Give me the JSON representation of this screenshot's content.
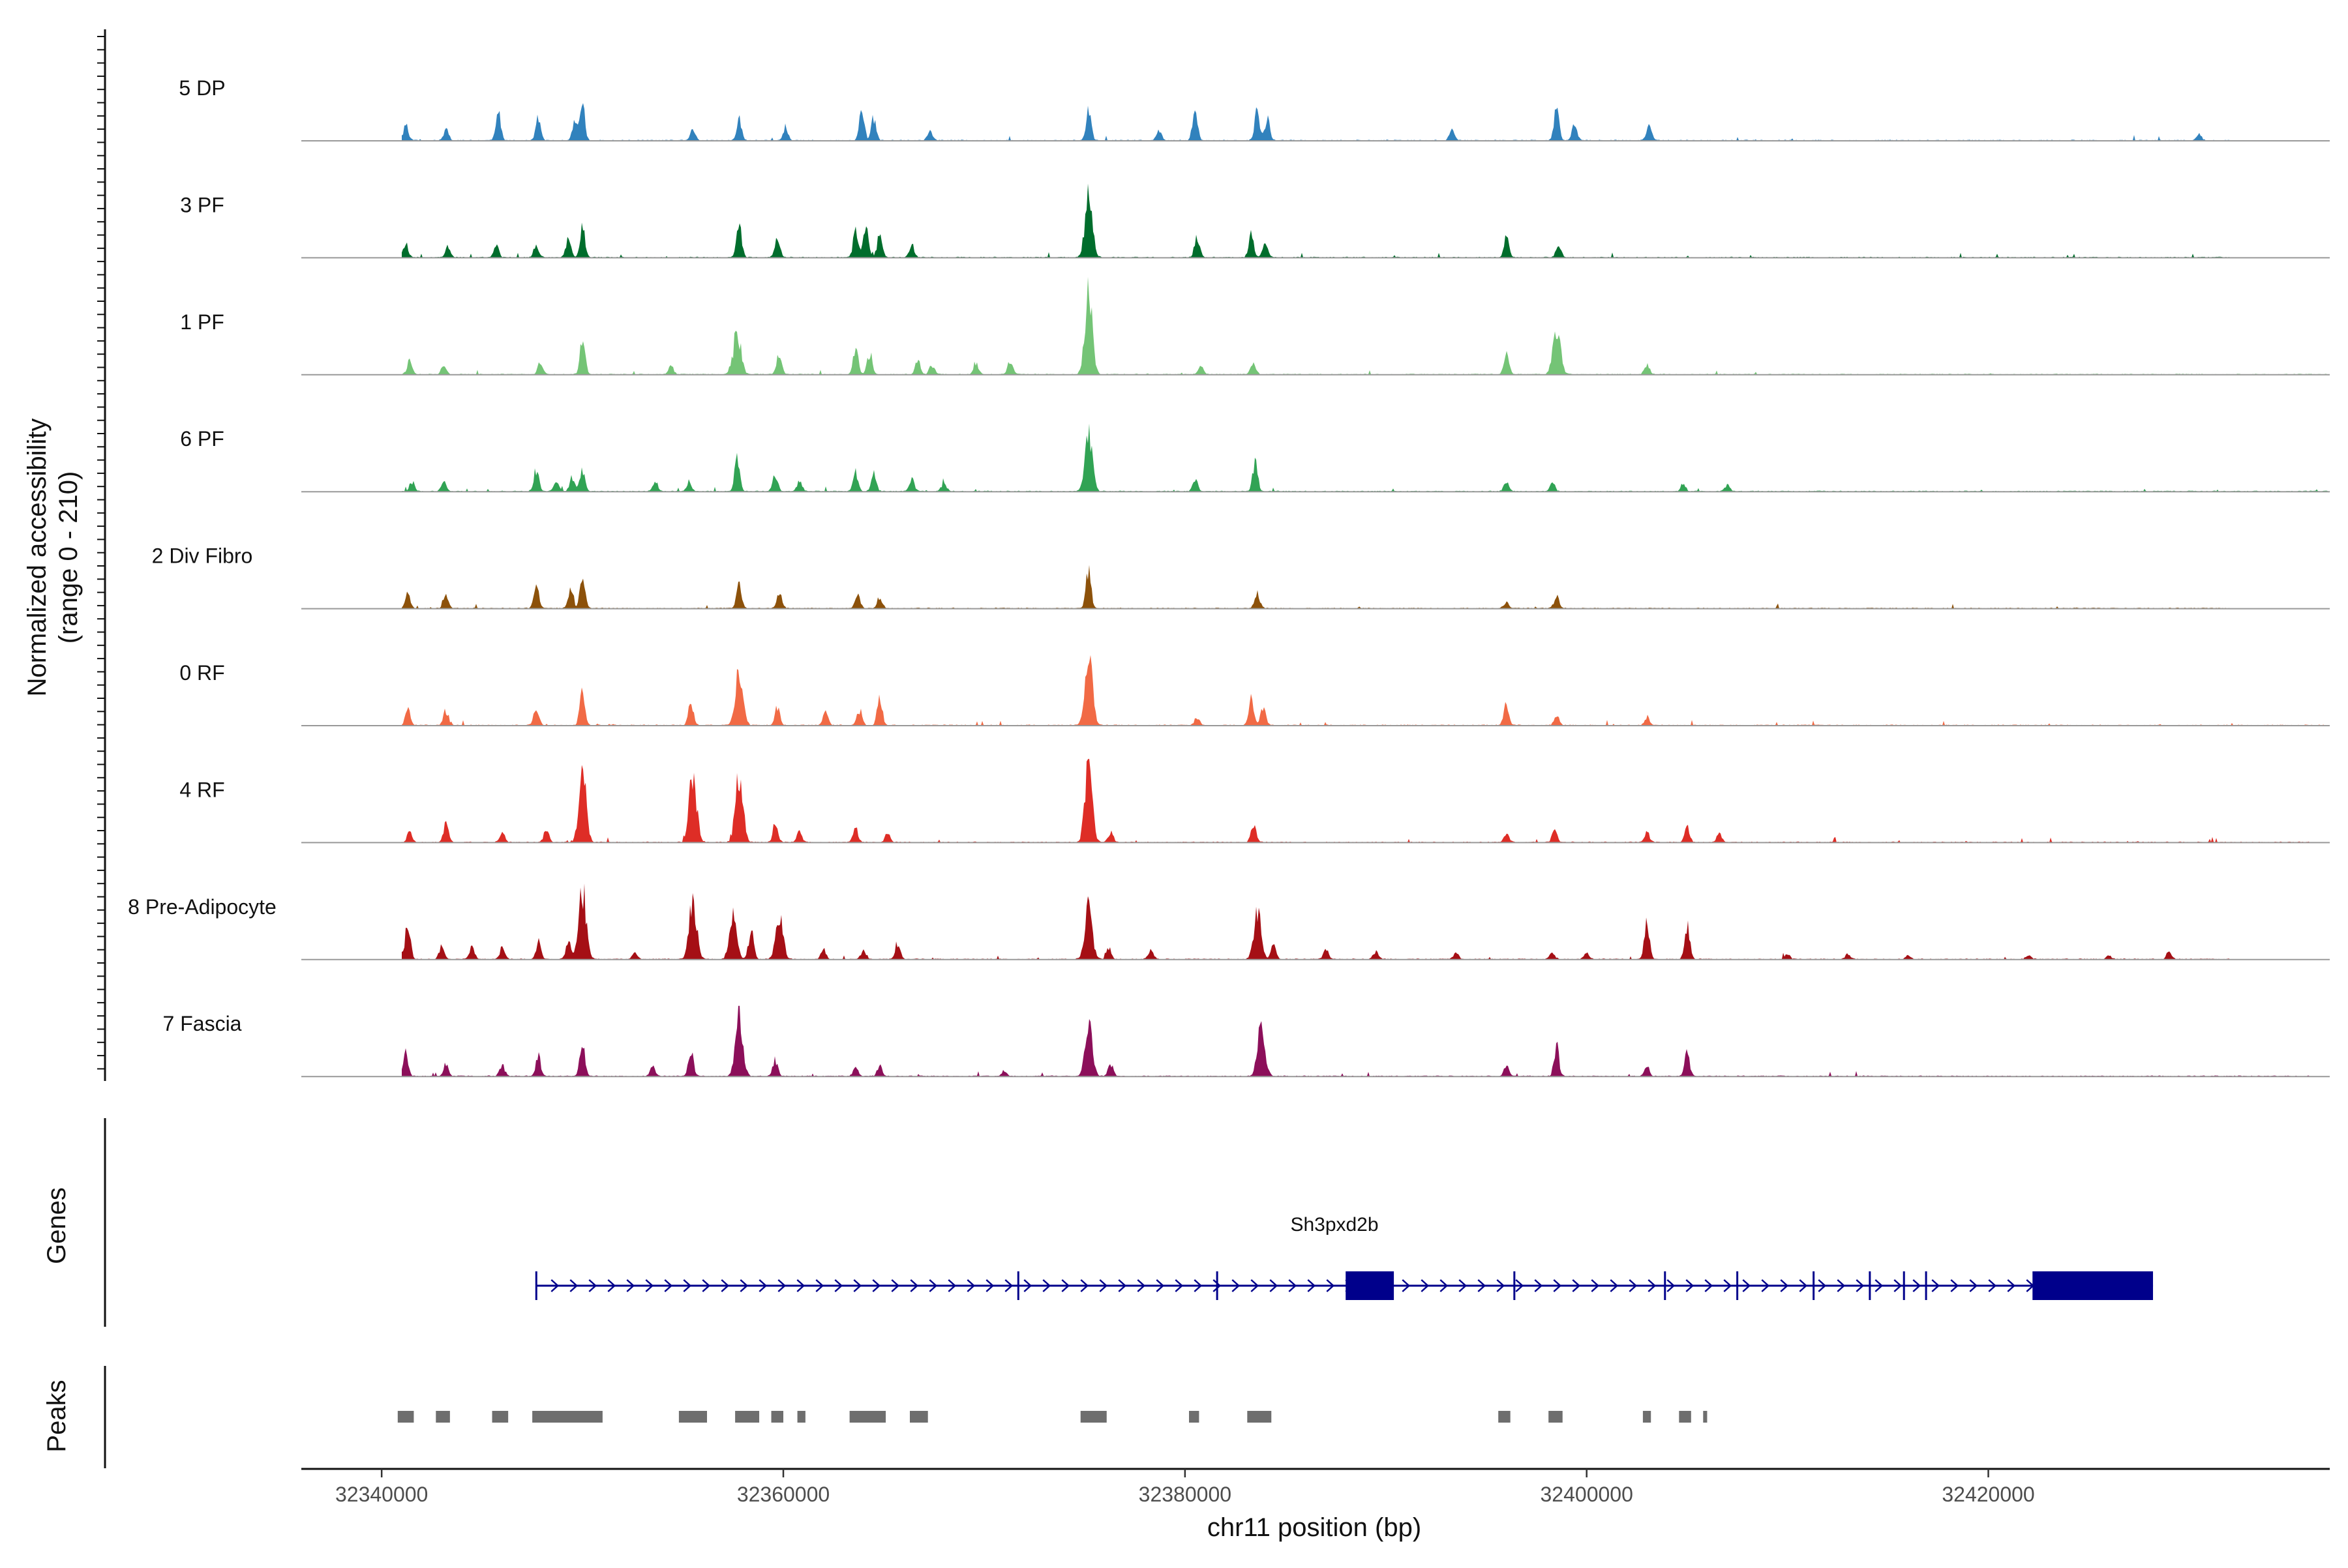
{
  "chart_data": {
    "type": "area",
    "chromosome": "chr11",
    "xlabel": "chr11 position (bp)",
    "xlim": [
      32336000,
      32437000
    ],
    "x_ticks": [
      32340000,
      32360000,
      32380000,
      32400000,
      32420000
    ],
    "x_tick_labels": [
      "32340000",
      "32360000",
      "32380000",
      "32400000",
      "32420000"
    ],
    "ylabel_line1": "Normalized accessibility",
    "ylabel_line2": "(range 0 - 210)",
    "ylim": [
      0,
      210
    ],
    "baseline_color": "#999999",
    "series": [
      {
        "name": "5 DP",
        "color": "#3182bd",
        "end": 32432000,
        "peaks": [
          [
            32341200,
            42
          ],
          [
            32343200,
            30
          ],
          [
            32345800,
            72
          ],
          [
            32347800,
            62
          ],
          [
            32349600,
            50
          ],
          [
            32350000,
            88
          ],
          [
            32355500,
            28
          ],
          [
            32357800,
            52
          ],
          [
            32360100,
            32
          ],
          [
            32363900,
            72
          ],
          [
            32364500,
            60
          ],
          [
            32367300,
            22
          ],
          [
            32375200,
            90
          ],
          [
            32378700,
            28
          ],
          [
            32380500,
            80
          ],
          [
            32383600,
            75
          ],
          [
            32384100,
            60
          ],
          [
            32393300,
            25
          ],
          [
            32398500,
            80
          ],
          [
            32399400,
            40
          ],
          [
            32403100,
            38
          ],
          [
            32430500,
            15
          ]
        ]
      },
      {
        "name": "3 PF",
        "color": "#006d2c",
        "end": 32432000,
        "peaks": [
          [
            32341200,
            35
          ],
          [
            32343300,
            28
          ],
          [
            32345700,
            30
          ],
          [
            32347700,
            35
          ],
          [
            32349300,
            48
          ],
          [
            32350000,
            85
          ],
          [
            32357800,
            82
          ],
          [
            32359700,
            52
          ],
          [
            32363600,
            70
          ],
          [
            32364100,
            82
          ],
          [
            32364800,
            60
          ],
          [
            32366400,
            30
          ],
          [
            32375200,
            155
          ],
          [
            32380600,
            55
          ],
          [
            32383300,
            55
          ],
          [
            32384000,
            42
          ],
          [
            32396000,
            50
          ],
          [
            32398600,
            32
          ]
        ]
      },
      {
        "name": "1 PF",
        "color": "#74c476",
        "end": 32437000,
        "peaks": [
          [
            32341400,
            38
          ],
          [
            32343100,
            25
          ],
          [
            32347900,
            35
          ],
          [
            32350000,
            100
          ],
          [
            32354400,
            25
          ],
          [
            32357700,
            110
          ],
          [
            32359800,
            55
          ],
          [
            32363600,
            65
          ],
          [
            32364300,
            55
          ],
          [
            32366700,
            38
          ],
          [
            32367400,
            25
          ],
          [
            32369600,
            25
          ],
          [
            32371300,
            35
          ],
          [
            32375200,
            210
          ],
          [
            32380800,
            22
          ],
          [
            32383400,
            35
          ],
          [
            32396000,
            60
          ],
          [
            32398500,
            122
          ],
          [
            32403000,
            28
          ]
        ]
      },
      {
        "name": "6 PF",
        "color": "#31a354",
        "end": 32437000,
        "peaks": [
          [
            32341500,
            25
          ],
          [
            32343100,
            30
          ],
          [
            32347700,
            55
          ],
          [
            32348700,
            30
          ],
          [
            32349500,
            38
          ],
          [
            32350000,
            55
          ],
          [
            32353600,
            25
          ],
          [
            32355300,
            25
          ],
          [
            32357700,
            88
          ],
          [
            32359600,
            45
          ],
          [
            32360800,
            25
          ],
          [
            32363600,
            48
          ],
          [
            32364500,
            45
          ],
          [
            32366400,
            30
          ],
          [
            32368000,
            22
          ],
          [
            32375200,
            140
          ],
          [
            32380500,
            30
          ],
          [
            32383500,
            75
          ],
          [
            32396000,
            25
          ],
          [
            32398300,
            22
          ],
          [
            32404800,
            20
          ],
          [
            32407000,
            18
          ]
        ]
      },
      {
        "name": "2 Div Fibro",
        "color": "#8c510a",
        "end": 32432000,
        "peaks": [
          [
            32341300,
            40
          ],
          [
            32343200,
            30
          ],
          [
            32347700,
            60
          ],
          [
            32349400,
            45
          ],
          [
            32350000,
            82
          ],
          [
            32357800,
            65
          ],
          [
            32359800,
            45
          ],
          [
            32363700,
            35
          ],
          [
            32364800,
            28
          ],
          [
            32375200,
            98
          ],
          [
            32383600,
            40
          ],
          [
            32396000,
            15
          ],
          [
            32398500,
            30
          ]
        ]
      },
      {
        "name": "0 RF",
        "color": "#f16a45",
        "end": 32437000,
        "peaks": [
          [
            32341300,
            42
          ],
          [
            32343200,
            38
          ],
          [
            32347700,
            45
          ],
          [
            32350000,
            100
          ],
          [
            32355400,
            55
          ],
          [
            32357800,
            152
          ],
          [
            32359700,
            50
          ],
          [
            32362100,
            35
          ],
          [
            32363800,
            40
          ],
          [
            32364800,
            70
          ],
          [
            32375200,
            180
          ],
          [
            32380600,
            22
          ],
          [
            32383300,
            70
          ],
          [
            32383900,
            48
          ],
          [
            32396000,
            62
          ],
          [
            32398500,
            25
          ],
          [
            32403000,
            22
          ]
        ]
      },
      {
        "name": "4 RF",
        "color": "#de2d26",
        "end": 32436000,
        "peaks": [
          [
            32341400,
            28
          ],
          [
            32343200,
            45
          ],
          [
            32346000,
            25
          ],
          [
            32348200,
            30
          ],
          [
            32350000,
            185
          ],
          [
            32355500,
            175
          ],
          [
            32357800,
            185
          ],
          [
            32359600,
            48
          ],
          [
            32360800,
            30
          ],
          [
            32363600,
            40
          ],
          [
            32365200,
            25
          ],
          [
            32375200,
            190
          ],
          [
            32376300,
            28
          ],
          [
            32383400,
            48
          ],
          [
            32396000,
            25
          ],
          [
            32398400,
            30
          ],
          [
            32403000,
            28
          ],
          [
            32405000,
            42
          ],
          [
            32406600,
            22
          ]
        ]
      },
      {
        "name": "8 Pre-Adipocyte",
        "color": "#a50f15",
        "end": 32432000,
        "peaks": [
          [
            32341300,
            100
          ],
          [
            32343000,
            35
          ],
          [
            32344500,
            30
          ],
          [
            32346000,
            30
          ],
          [
            32347800,
            45
          ],
          [
            32349300,
            50
          ],
          [
            32350000,
            180
          ],
          [
            32352600,
            20
          ],
          [
            32355500,
            150
          ],
          [
            32357500,
            110
          ],
          [
            32358400,
            80
          ],
          [
            32359800,
            112
          ],
          [
            32362000,
            25
          ],
          [
            32364000,
            25
          ],
          [
            32365700,
            40
          ],
          [
            32375200,
            130
          ],
          [
            32376200,
            30
          ],
          [
            32378300,
            25
          ],
          [
            32383600,
            120
          ],
          [
            32384400,
            40
          ],
          [
            32387000,
            25
          ],
          [
            32389500,
            20
          ],
          [
            32393500,
            20
          ],
          [
            32398300,
            18
          ],
          [
            32400000,
            18
          ],
          [
            32403000,
            98
          ],
          [
            32405000,
            95
          ],
          [
            32410000,
            15
          ],
          [
            32413000,
            12
          ],
          [
            32416000,
            10
          ],
          [
            32422000,
            12
          ],
          [
            32426000,
            10
          ],
          [
            32429000,
            18
          ]
        ]
      },
      {
        "name": "7 Fascia",
        "color": "#8c0f5a",
        "end": 32436000,
        "peaks": [
          [
            32341200,
            62
          ],
          [
            32343200,
            30
          ],
          [
            32346000,
            30
          ],
          [
            32347800,
            50
          ],
          [
            32350000,
            88
          ],
          [
            32353500,
            25
          ],
          [
            32355400,
            72
          ],
          [
            32357800,
            155
          ],
          [
            32359600,
            40
          ],
          [
            32363600,
            25
          ],
          [
            32364800,
            25
          ],
          [
            32371000,
            15
          ],
          [
            32375200,
            130
          ],
          [
            32376300,
            30
          ],
          [
            32383800,
            135
          ],
          [
            32396000,
            28
          ],
          [
            32398500,
            75
          ],
          [
            32403000,
            25
          ],
          [
            32405000,
            65
          ]
        ]
      }
    ],
    "gene": {
      "name": "Sh3pxd2b",
      "strand": "+",
      "start": 32347700,
      "end": 32428200,
      "color": "#00008b",
      "exons": [
        [
          32347700,
          32347900
        ],
        [
          32371700,
          32371800
        ],
        [
          32381600,
          32381700
        ],
        [
          32388000,
          32390400
        ],
        [
          32396400,
          32396550
        ],
        [
          32403900,
          32404000
        ],
        [
          32407500,
          32407600
        ],
        [
          32411300,
          32411400
        ],
        [
          32414100,
          32414300
        ],
        [
          32415800,
          32415900
        ],
        [
          32416900,
          32417000
        ],
        [
          32422200,
          32428200
        ]
      ]
    },
    "peak_regions": [
      [
        32340800,
        32341600
      ],
      [
        32342700,
        32343400
      ],
      [
        32345500,
        32346300
      ],
      [
        32347500,
        32351000
      ],
      [
        32354800,
        32356200
      ],
      [
        32357600,
        32358800
      ],
      [
        32359400,
        32360000
      ],
      [
        32360700,
        32361100
      ],
      [
        32363300,
        32365100
      ],
      [
        32366300,
        32367200
      ],
      [
        32374800,
        32376100
      ],
      [
        32380200,
        32380700
      ],
      [
        32383100,
        32384300
      ],
      [
        32395600,
        32396200
      ],
      [
        32398100,
        32398800
      ],
      [
        32402800,
        32403200
      ],
      [
        32404600,
        32405200
      ],
      [
        32405800,
        32406000
      ]
    ],
    "peaks_color": "#6e6e6e",
    "genes_track_label": "Genes",
    "peaks_track_label": "Peaks"
  }
}
